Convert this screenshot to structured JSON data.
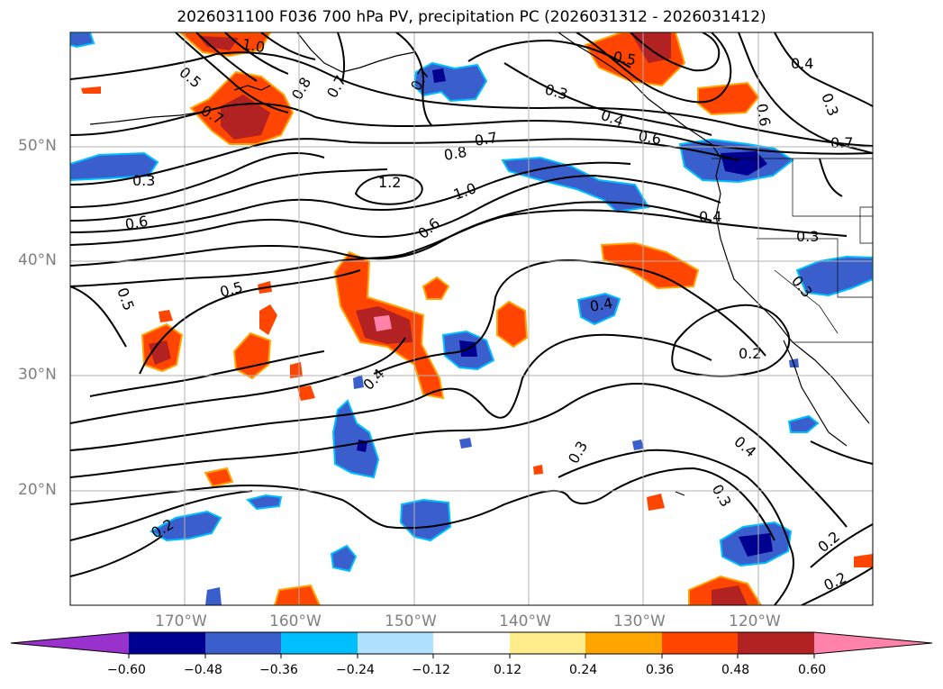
{
  "title": "2026031100 F036 700 hPa PV, precipitation PC (2026031312 - 2026031412)",
  "map": {
    "projection": "cylindrical",
    "lon_range": [
      -180,
      -110
    ],
    "lat_range": [
      10,
      60
    ],
    "gridlines": true,
    "grid_color": "#b0b0b0",
    "lat_labels": [
      "50°N",
      "40°N",
      "30°N",
      "20°N"
    ],
    "lon_labels": [
      "170°W",
      "160°W",
      "150°W",
      "140°W",
      "130°W",
      "120°W"
    ]
  },
  "contour_labels": [
    "1.0",
    "0.5",
    "0.7",
    "0.8",
    "0.7",
    "0.7",
    "0.3",
    "0.4",
    "0.6",
    "0.5",
    "0.4",
    "0.3",
    "0.6",
    "0.7",
    "0.3",
    "0.8",
    "0.7",
    "1.2",
    "1.0",
    "0.6",
    "0.6",
    "0.4",
    "0.3",
    "0.5",
    "0.5",
    "0.4",
    "0.4",
    "0.3",
    "0.2",
    "0.4",
    "0.3",
    "0.3",
    "0.2",
    "0.2",
    "0.2"
  ],
  "colorbar": {
    "orientation": "horizontal",
    "extend": "both",
    "ticks": [
      "−0.60",
      "−0.48",
      "−0.36",
      "−0.24",
      "−0.12",
      "0.12",
      "0.24",
      "0.36",
      "0.48",
      "0.60"
    ],
    "colors": [
      "#9932cc",
      "#000090",
      "#3a5fcd",
      "#00bfff",
      "#b0e2ff",
      "#ffffff",
      "#ffec8b",
      "#ffa500",
      "#ff4500",
      "#b22222",
      "#ff82ab"
    ]
  }
}
